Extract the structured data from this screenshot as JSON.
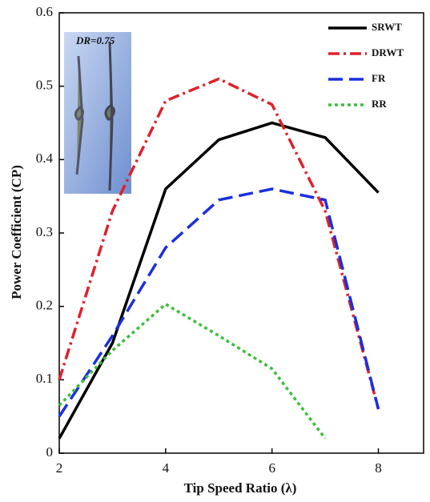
{
  "chart_data": {
    "type": "line",
    "x_label": "Tip Speed Ratio (λ)",
    "y_label": "Power Coefficient (CP)",
    "annotation": "DR=0.75",
    "x": [
      2,
      3,
      4,
      5,
      6,
      7,
      8
    ],
    "series": [
      {
        "name": "SRWT",
        "color": "#000000",
        "linestyle": "solid",
        "values": [
          0.02,
          0.15,
          0.36,
          0.427,
          0.45,
          0.43,
          0.355
        ]
      },
      {
        "name": "DRWT",
        "color": "#e0202a",
        "linestyle": "dashdot",
        "values": [
          0.1,
          0.33,
          0.48,
          0.51,
          0.475,
          0.33,
          0.06
        ]
      },
      {
        "name": "FR",
        "color": "#1a2fe0",
        "linestyle": "dashed",
        "values": [
          0.05,
          0.16,
          0.28,
          0.345,
          0.36,
          0.345,
          0.06
        ]
      },
      {
        "name": "RR",
        "color": "#3cbf3c",
        "linestyle": "dotted",
        "values": [
          0.065,
          0.14,
          0.203,
          0.16,
          0.115,
          0.02,
          null
        ]
      }
    ],
    "xlim": [
      2,
      8.85
    ],
    "xticks": [
      2,
      4,
      6,
      8
    ],
    "ylim": [
      0,
      0.6
    ],
    "yticks": [
      0,
      0.1,
      0.2,
      0.3,
      0.4,
      0.5,
      0.6
    ],
    "legend": "upper right"
  }
}
